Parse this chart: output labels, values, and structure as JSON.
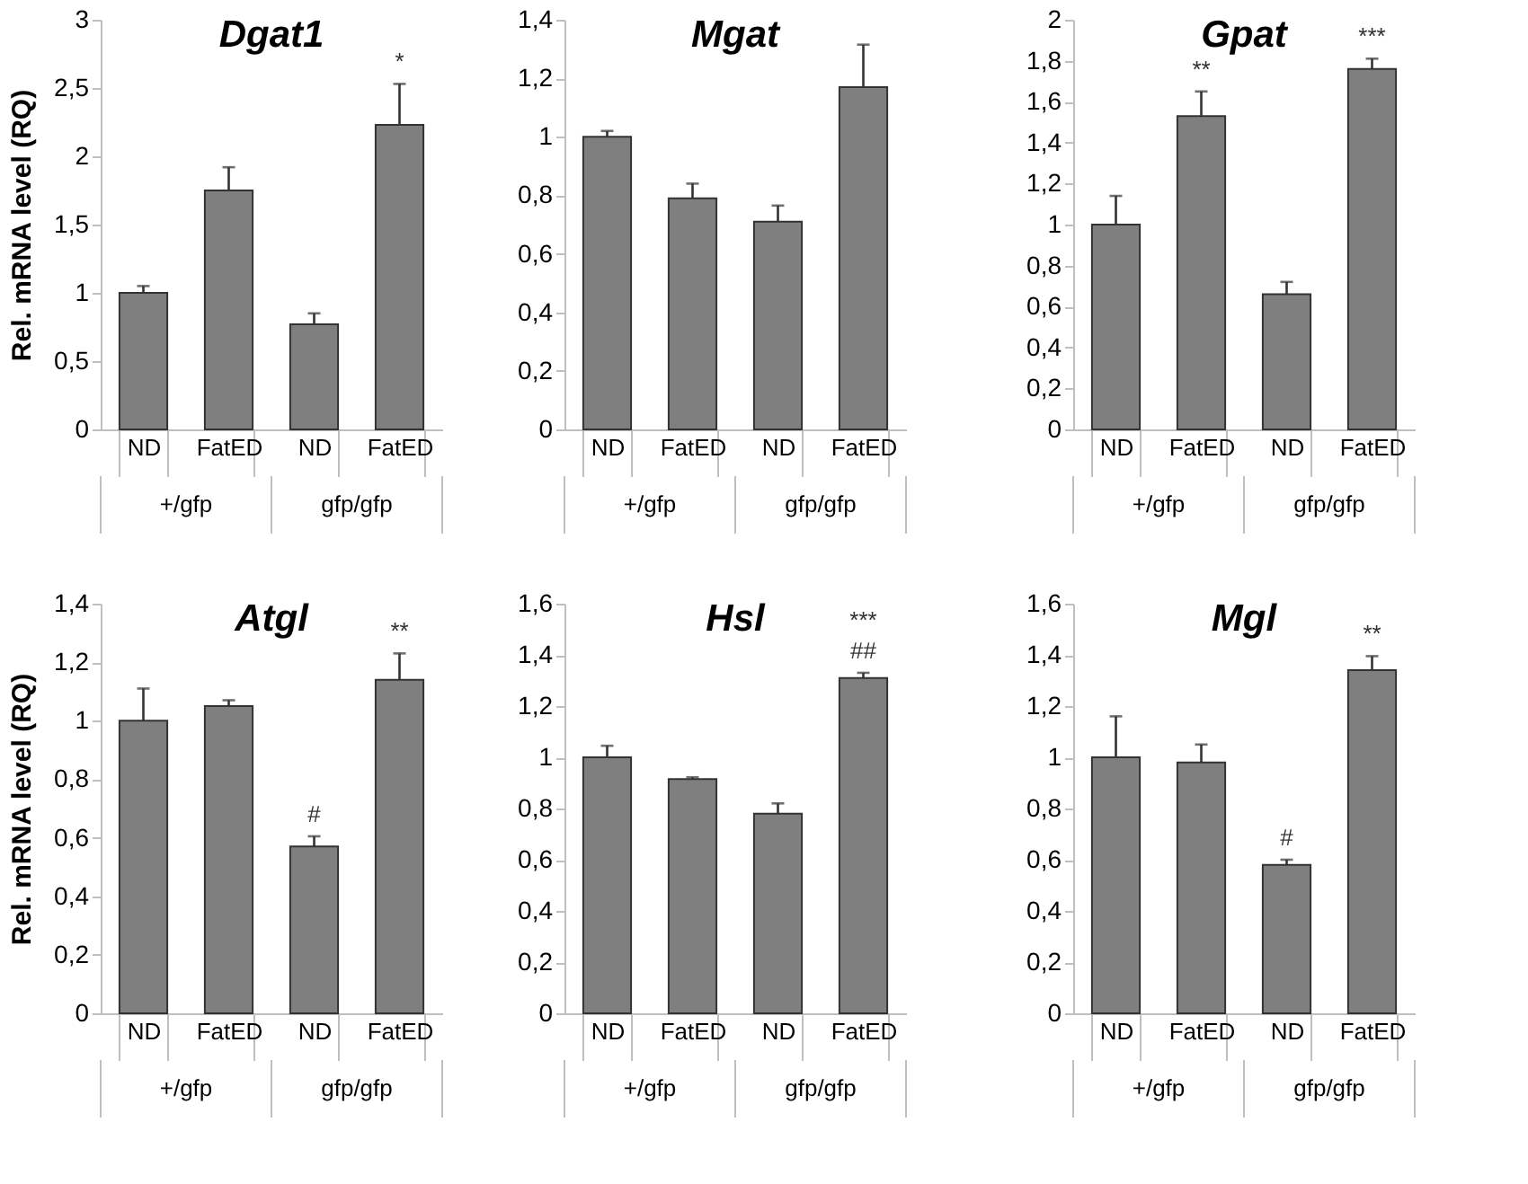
{
  "chart_data": [
    {
      "type": "bar",
      "title": "Dgat1",
      "ylabel": "Rel. mRNA level (RQ)",
      "categories": [
        "ND",
        "FatED",
        "ND",
        "FatED"
      ],
      "values": [
        1.0,
        1.75,
        0.77,
        2.23
      ],
      "errors": [
        [
          1.0,
          1.05
        ],
        [
          1.75,
          1.92
        ],
        [
          0.77,
          0.85
        ],
        [
          2.23,
          2.53
        ]
      ],
      "value_labels": [
        null,
        null,
        null,
        "*"
      ],
      "color": "#7f7f7f",
      "ylim": [
        0,
        3
      ],
      "yticks": [
        0,
        {
          "value": 0.5,
          "label": "0,5"
        },
        1,
        {
          "value": 1.5,
          "label": "1,5"
        },
        2,
        {
          "value": 2.5,
          "label": "2,5"
        },
        3
      ],
      "annotations": [
        "+/gfp",
        "gfp/gfp"
      ]
    },
    {
      "type": "bar",
      "title": "Mgat",
      "categories": [
        "ND",
        "FatED",
        "ND",
        "FatED"
      ],
      "values": [
        1.0,
        0.79,
        0.71,
        1.17
      ],
      "errors": [
        [
          1.0,
          1.02
        ],
        [
          0.79,
          0.84
        ],
        [
          0.71,
          0.765
        ],
        [
          1.17,
          1.315
        ]
      ],
      "color": "#7f7f7f",
      "ylim": [
        0,
        1.4
      ],
      "yticks": [
        0,
        {
          "value": 0.2,
          "label": "0,2"
        },
        {
          "value": 0.4,
          "label": "0,4"
        },
        {
          "value": 0.6,
          "label": "0,6"
        },
        {
          "value": 0.8,
          "label": "0,8"
        },
        1,
        {
          "value": 1.2,
          "label": "1,2"
        },
        {
          "value": 1.4,
          "label": "1,4"
        }
      ],
      "annotations": [
        "+/gfp",
        "gfp/gfp"
      ]
    },
    {
      "type": "bar",
      "title": "Gpat",
      "categories": [
        "ND",
        "FatED",
        "ND",
        "FatED"
      ],
      "values": [
        1.0,
        1.53,
        0.66,
        1.76
      ],
      "errors": [
        [
          1.0,
          1.14
        ],
        [
          1.53,
          1.65
        ],
        [
          0.66,
          0.72
        ],
        [
          1.76,
          1.81
        ]
      ],
      "value_labels": [
        null,
        "**",
        null,
        "***"
      ],
      "color": "#7f7f7f",
      "ylim": [
        0,
        2
      ],
      "yticks": [
        0,
        {
          "value": 0.2,
          "label": "0,2"
        },
        {
          "value": 0.4,
          "label": "0,4"
        },
        {
          "value": 0.6,
          "label": "0,6"
        },
        {
          "value": 0.8,
          "label": "0,8"
        },
        1,
        {
          "value": 1.2,
          "label": "1,2"
        },
        {
          "value": 1.4,
          "label": "1,4"
        },
        {
          "value": 1.6,
          "label": "1,6"
        },
        {
          "value": 1.8,
          "label": "1,8"
        },
        2
      ],
      "annotations": [
        "+/gfp",
        "gfp/gfp"
      ]
    },
    {
      "type": "bar",
      "title": "Atgl",
      "ylabel": "Rel. mRNA level (RQ)",
      "categories": [
        "ND",
        "FatED",
        "ND",
        "FatED"
      ],
      "values": [
        1.0,
        1.05,
        0.57,
        1.14
      ],
      "errors": [
        [
          1.0,
          1.11
        ],
        [
          1.05,
          1.07
        ],
        [
          0.57,
          0.605
        ],
        [
          1.14,
          1.23
        ]
      ],
      "value_labels": [
        null,
        null,
        "#",
        "**"
      ],
      "color": "#7f7f7f",
      "ylim": [
        0,
        1.4
      ],
      "yticks": [
        0,
        {
          "value": 0.2,
          "label": "0,2"
        },
        {
          "value": 0.4,
          "label": "0,4"
        },
        {
          "value": 0.6,
          "label": "0,6"
        },
        {
          "value": 0.8,
          "label": "0,8"
        },
        1,
        {
          "value": 1.2,
          "label": "1,2"
        },
        {
          "value": 1.4,
          "label": "1,4"
        }
      ],
      "annotations": [
        "+/gfp",
        "gfp/gfp"
      ]
    },
    {
      "type": "bar",
      "title": "Hsl",
      "categories": [
        "ND",
        "FatED",
        "ND",
        "FatED"
      ],
      "values": [
        1.0,
        0.915,
        0.78,
        1.31
      ],
      "errors": [
        [
          1.0,
          1.045
        ],
        [
          0.915,
          0.922
        ],
        [
          0.78,
          0.82
        ],
        [
          1.31,
          1.33
        ]
      ],
      "value_labels": [
        null,
        null,
        null,
        "***\n##"
      ],
      "color": "#7f7f7f",
      "ylim": [
        0,
        1.6
      ],
      "yticks": [
        0,
        {
          "value": 0.2,
          "label": "0,2"
        },
        {
          "value": 0.4,
          "label": "0,4"
        },
        {
          "value": 0.6,
          "label": "0,6"
        },
        {
          "value": 0.8,
          "label": "0,8"
        },
        1,
        {
          "value": 1.2,
          "label": "1,2"
        },
        {
          "value": 1.4,
          "label": "1,4"
        },
        {
          "value": 1.6,
          "label": "1,6"
        }
      ],
      "annotations": [
        "+/gfp",
        "gfp/gfp"
      ]
    },
    {
      "type": "bar",
      "title": "Mgl",
      "categories": [
        "ND",
        "FatED",
        "ND",
        "FatED"
      ],
      "values": [
        1.0,
        0.98,
        0.58,
        1.34
      ],
      "errors": [
        [
          1.0,
          1.16
        ],
        [
          0.98,
          1.05
        ],
        [
          0.58,
          0.6
        ],
        [
          1.34,
          1.395
        ]
      ],
      "value_labels": [
        null,
        null,
        "#",
        "**"
      ],
      "color": "#7f7f7f",
      "ylim": [
        0,
        1.6
      ],
      "yticks": [
        0,
        {
          "value": 0.2,
          "label": "0,2"
        },
        {
          "value": 0.4,
          "label": "0,4"
        },
        {
          "value": 0.6,
          "label": "0,6"
        },
        {
          "value": 0.8,
          "label": "0,8"
        },
        1,
        {
          "value": 1.2,
          "label": "1,2"
        },
        {
          "value": 1.4,
          "label": "1,4"
        },
        {
          "value": 1.6,
          "label": "1,6"
        }
      ],
      "annotations": [
        "+/gfp",
        "gfp/gfp"
      ]
    }
  ]
}
